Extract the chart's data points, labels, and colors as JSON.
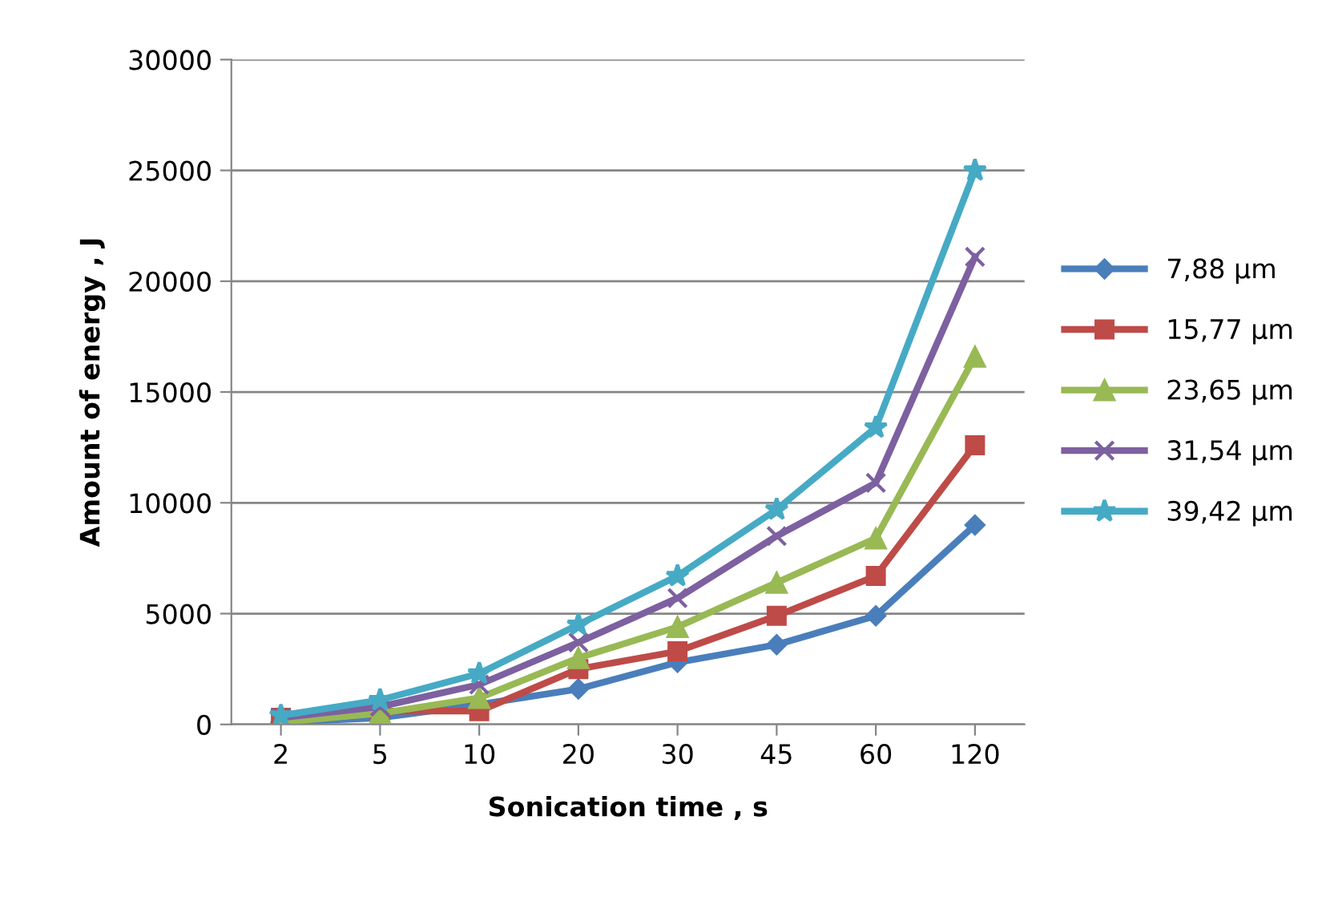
{
  "chart_data": {
    "type": "line",
    "xlabel": "Sonication time , s",
    "ylabel": "Amount of energy , J",
    "categories": [
      "2",
      "5",
      "10",
      "20",
      "30",
      "45",
      "60",
      "120"
    ],
    "series": [
      {
        "name": "7,88 µm",
        "color": "#4a7ebb",
        "marker": "diamond",
        "values": [
          100,
          300,
          900,
          1600,
          2800,
          3600,
          4900,
          9000
        ]
      },
      {
        "name": "15,77 µm",
        "color": "#be4b48",
        "marker": "square",
        "values": [
          300,
          600,
          600,
          2500,
          3300,
          4900,
          6700,
          12600
        ]
      },
      {
        "name": "23,65 µm",
        "color": "#98b954",
        "marker": "triangle",
        "values": [
          100,
          500,
          1200,
          3000,
          4400,
          6400,
          8400,
          16600
        ]
      },
      {
        "name": "31,54 µm",
        "color": "#7d60a0",
        "marker": "cross",
        "values": [
          300,
          800,
          1800,
          3700,
          5700,
          8500,
          10900,
          21100
        ]
      },
      {
        "name": "39,42 µm",
        "color": "#46aac5",
        "marker": "star",
        "values": [
          400,
          1100,
          2300,
          4500,
          6700,
          9700,
          13400,
          25000
        ]
      }
    ],
    "ylim": [
      0,
      30000
    ],
    "yticks": [
      0,
      5000,
      10000,
      15000,
      20000,
      25000,
      30000
    ],
    "grid": "y",
    "legend": "right",
    "line_style": "solid"
  }
}
